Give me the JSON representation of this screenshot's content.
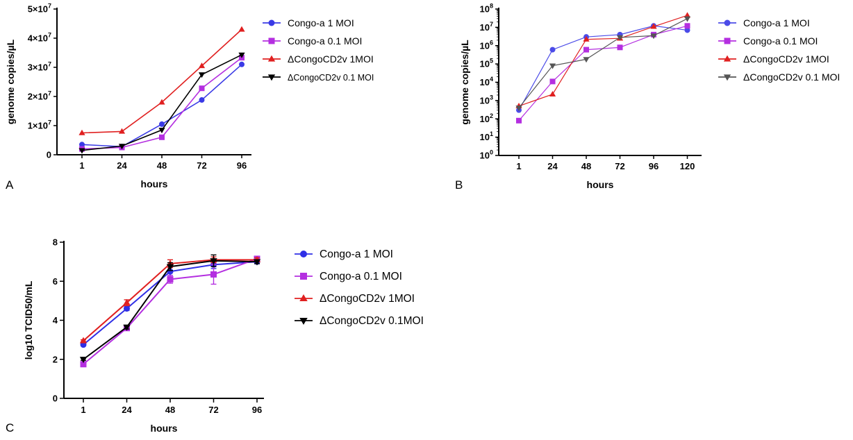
{
  "chart_data": [
    {
      "panel": "A",
      "type": "line",
      "xlabel": "hours",
      "ylabel": "genome copies/µL",
      "categories": [
        "1",
        "24",
        "48",
        "72",
        "96"
      ],
      "ylim": [
        0,
        50000000
      ],
      "yscale": "linear",
      "yticks": [
        {
          "value": 0,
          "label": "0"
        },
        {
          "value": 10000000,
          "label": "1×10",
          "exp": "7"
        },
        {
          "value": 20000000,
          "label": "2×10",
          "exp": "7"
        },
        {
          "value": 30000000,
          "label": "3×10",
          "exp": "7"
        },
        {
          "value": 40000000,
          "label": "4×10",
          "exp": "7"
        },
        {
          "value": 50000000,
          "label": "5×10",
          "exp": "7"
        }
      ],
      "series": [
        {
          "name": "Congo-a 1 MOI",
          "color": "#3a3ae6",
          "marker": "circle",
          "values": [
            3500000,
            2800000,
            10500000,
            18800000,
            31000000
          ]
        },
        {
          "name": "Congo-a 0.1 MOI",
          "color": "#b42fe0",
          "marker": "square",
          "values": [
            2000000,
            2500000,
            6000000,
            22800000,
            33300000
          ]
        },
        {
          "name": "ΔCongoCD2v 1MOI",
          "color": "#e02020",
          "marker": "triangle",
          "values": [
            7500000,
            8000000,
            18000000,
            30500000,
            43000000
          ]
        },
        {
          "name": "ΔCongoCD2v 0.1 MOI",
          "color": "#000000",
          "marker": "triangle-down",
          "values": [
            1500000,
            3000000,
            8500000,
            27500000,
            34300000
          ]
        }
      ]
    },
    {
      "panel": "B",
      "type": "line",
      "xlabel": "hours",
      "ylabel": "genome copies/µL",
      "categories": [
        "1",
        "24",
        "48",
        "72",
        "96",
        "120"
      ],
      "ylim": [
        1,
        100000000
      ],
      "yscale": "log",
      "yticks": [
        {
          "value": 1,
          "label": "10",
          "exp": "0"
        },
        {
          "value": 10,
          "label": "10",
          "exp": "1"
        },
        {
          "value": 100,
          "label": "10",
          "exp": "2"
        },
        {
          "value": 1000,
          "label": "10",
          "exp": "3"
        },
        {
          "value": 10000,
          "label": "10",
          "exp": "4"
        },
        {
          "value": 100000,
          "label": "10",
          "exp": "5"
        },
        {
          "value": 1000000,
          "label": "10",
          "exp": "6"
        },
        {
          "value": 10000000,
          "label": "10",
          "exp": "7"
        },
        {
          "value": 100000000,
          "label": "10",
          "exp": "8"
        }
      ],
      "series": [
        {
          "name": "Congo-a 1 MOI",
          "color": "#4b4be8",
          "marker": "circle",
          "values": [
            300,
            600000,
            3000000,
            4000000,
            12000000,
            7000000
          ]
        },
        {
          "name": "Congo-a 0.1 MOI",
          "color": "#b42fe0",
          "marker": "square",
          "values": [
            80,
            11000,
            600000,
            800000,
            4000000,
            12000000
          ]
        },
        {
          "name": "ΔCongoCD2v 1MOI",
          "color": "#e02020",
          "marker": "triangle",
          "values": [
            500,
            2200,
            2200000,
            2500000,
            11000000,
            45000000
          ]
        },
        {
          "name": "ΔCongoCD2v 0.1 MOI",
          "color": "#555555",
          "marker": "triangle-down",
          "values": [
            400,
            80000,
            180000,
            2800000,
            3500000,
            30000000
          ]
        }
      ]
    },
    {
      "panel": "C",
      "type": "line",
      "xlabel": "hours",
      "ylabel": "log10 TCID50/mL",
      "categories": [
        "1",
        "24",
        "48",
        "72",
        "96"
      ],
      "ylim": [
        0,
        8
      ],
      "yscale": "linear",
      "yticks": [
        {
          "value": 0,
          "label": "0"
        },
        {
          "value": 2,
          "label": "2"
        },
        {
          "value": 4,
          "label": "4"
        },
        {
          "value": 6,
          "label": "6"
        },
        {
          "value": 8,
          "label": "8"
        }
      ],
      "series": [
        {
          "name": "Congo-a 1 MOI",
          "color": "#2f2fe6",
          "marker": "circle",
          "values": [
            2.75,
            4.6,
            6.5,
            6.85,
            7.0
          ],
          "errors": [
            0.05,
            0.1,
            0.2,
            0.2,
            0.1
          ]
        },
        {
          "name": "Congo-a 0.1 MOI",
          "color": "#b42fe0",
          "marker": "square",
          "values": [
            1.75,
            3.6,
            6.1,
            6.35,
            7.15
          ],
          "errors": [
            0.1,
            0.1,
            0.2,
            0.5,
            0.1
          ]
        },
        {
          "name": "ΔCongoCD2v 1MOI",
          "color": "#e02020",
          "marker": "triangle",
          "values": [
            2.95,
            4.9,
            6.9,
            7.1,
            7.1
          ],
          "errors": [
            0.05,
            0.15,
            0.2,
            0.15,
            0.1
          ]
        },
        {
          "name": "ΔCongoCD2v 0.1MOI",
          "color": "#000000",
          "marker": "triangle-down",
          "values": [
            2.0,
            3.65,
            6.75,
            7.05,
            7.0
          ],
          "errors": [
            0.05,
            0.1,
            0.2,
            0.3,
            0.1
          ]
        }
      ]
    }
  ]
}
